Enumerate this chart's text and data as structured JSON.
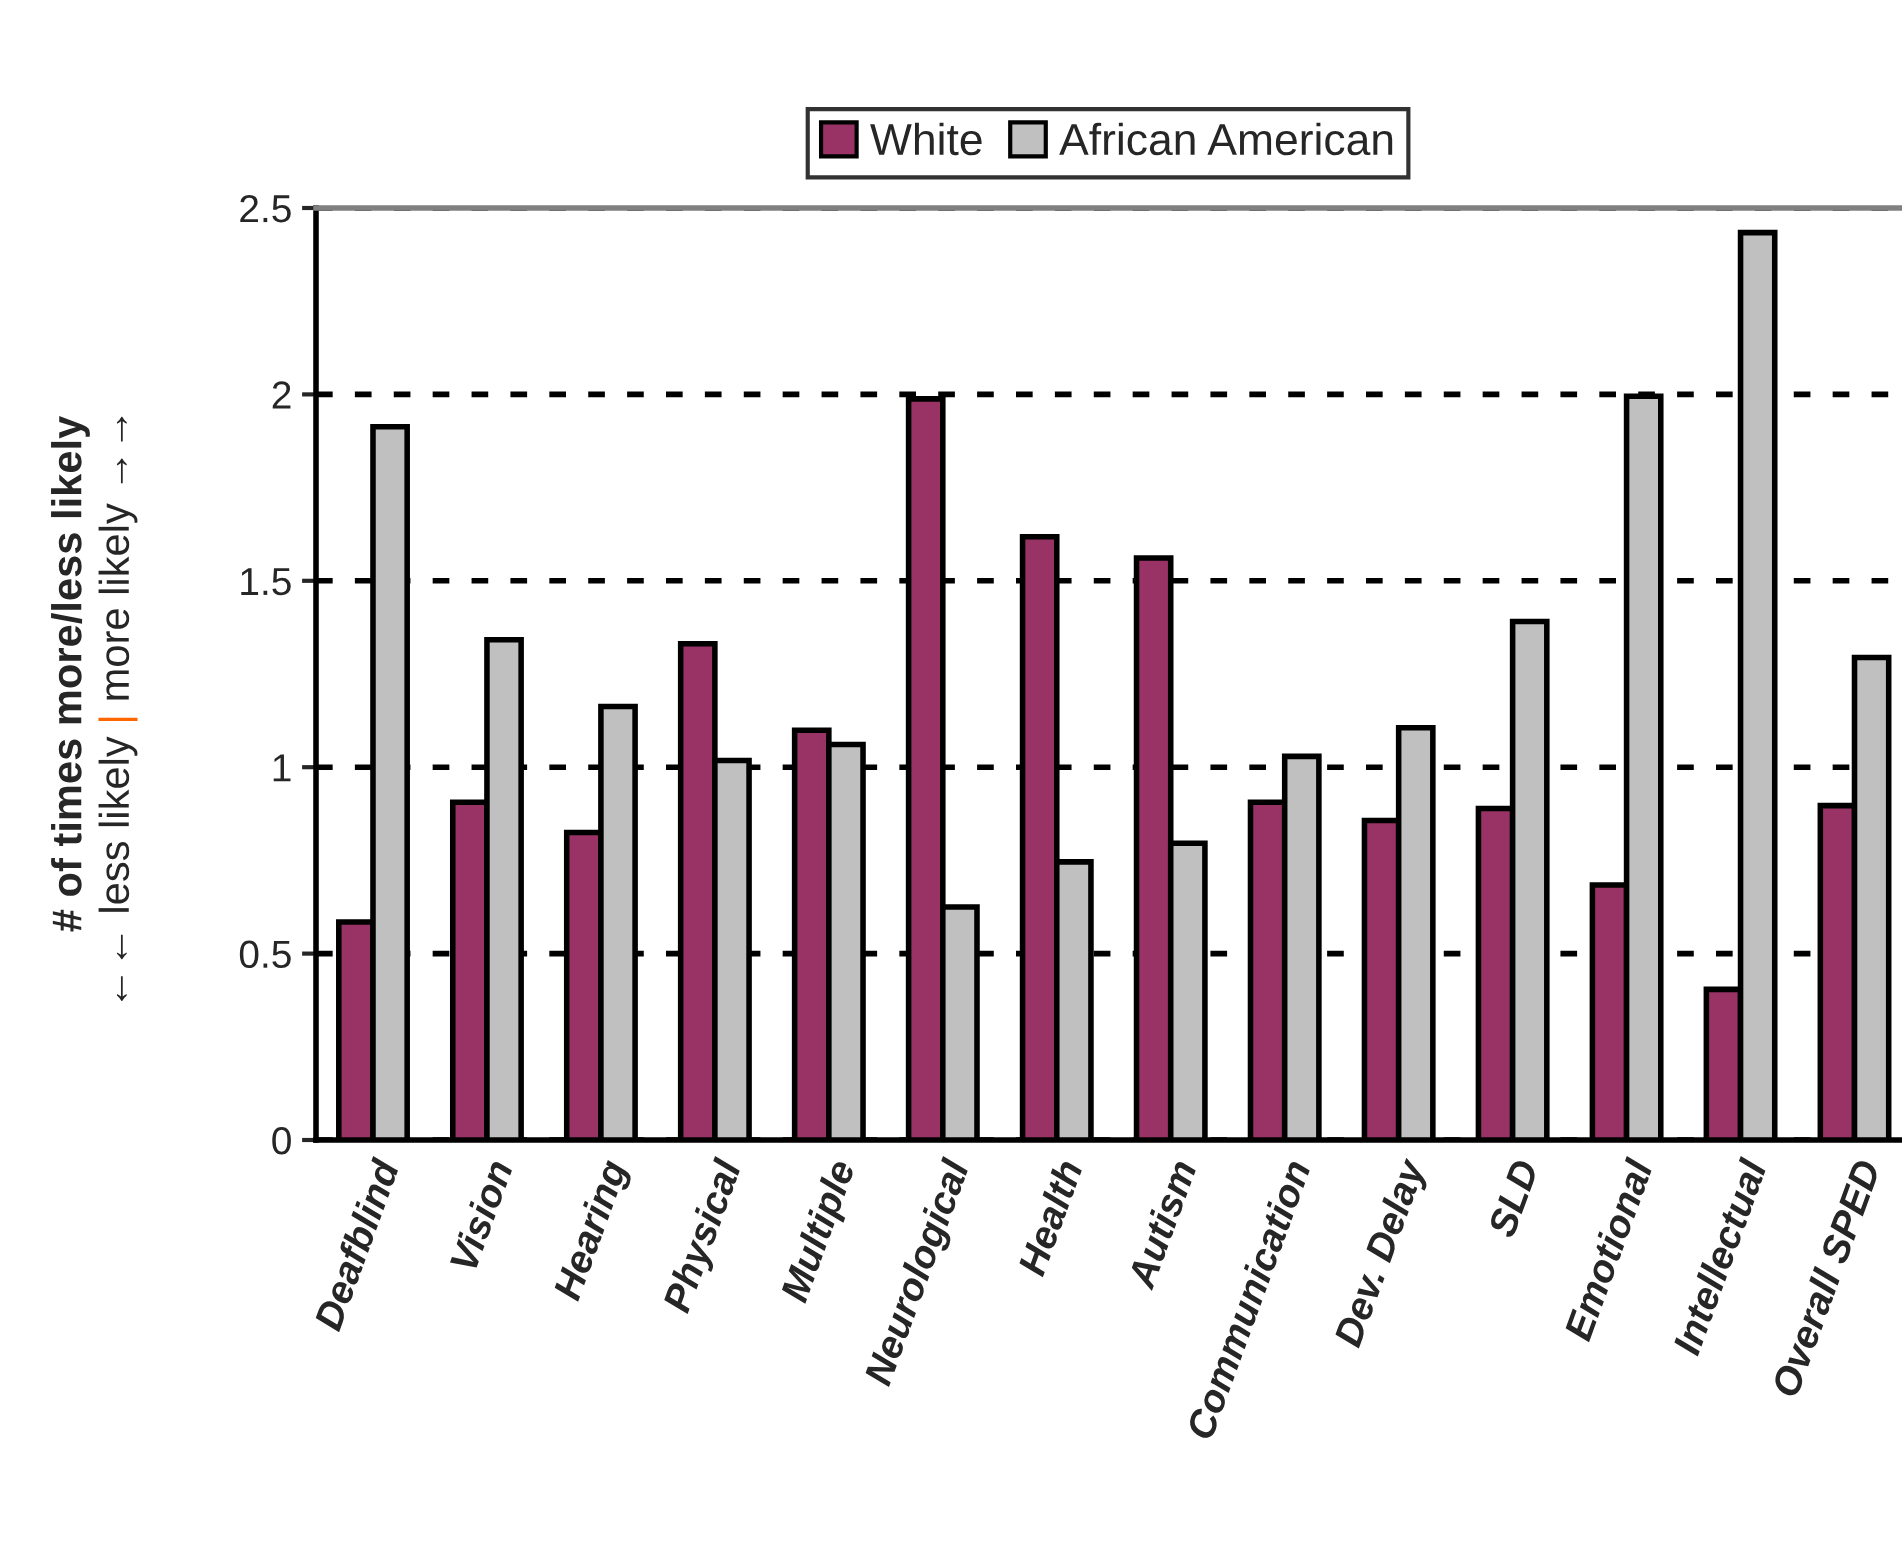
{
  "chart_data": {
    "type": "bar",
    "ylabel": "# of times more/less likely\n←← less likely | more likely →→",
    "categories": [
      "Deafblind",
      "Vision",
      "Hearing",
      "Physical",
      "Multiple",
      "Neurological",
      "Health",
      "Autism",
      "Communication",
      "Dev. Delay",
      "SLD",
      "Emotional",
      "Intellectual",
      "Overall SPED"
    ],
    "series": [
      {
        "name": "White",
        "color": "#993366",
        "values": [
          0.585,
          0.906,
          0.825,
          1.331,
          1.099,
          1.988,
          1.618,
          1.561,
          0.906,
          0.857,
          0.889,
          0.684,
          0.404,
          0.897
        ]
      },
      {
        "name": "African American",
        "color": "#c0c0c0",
        "values": [
          1.913,
          1.342,
          1.163,
          1.018,
          1.061,
          0.625,
          0.746,
          0.796,
          1.029,
          1.106,
          1.391,
          1.995,
          2.434,
          1.294
        ]
      }
    ],
    "ylim": [
      0,
      2.5
    ],
    "yticks": [
      0,
      0.5,
      1,
      1.5,
      2,
      2.5
    ],
    "grid": "y",
    "legend": "top"
  }
}
